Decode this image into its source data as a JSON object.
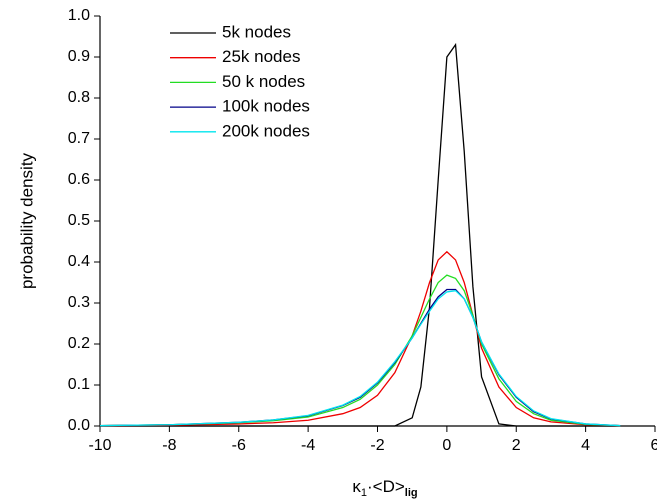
{
  "chart_data": {
    "type": "line",
    "x_label": [
      "κ",
      "1",
      "·<D>",
      "lig"
    ],
    "y_label": "probability density",
    "x": [
      -10,
      -8,
      -6,
      -5,
      -4,
      -3,
      -2.5,
      -2,
      -1.5,
      -1,
      -0.75,
      -0.5,
      -0.25,
      0,
      0.25,
      0.5,
      0.75,
      1,
      1.5,
      2,
      2.5,
      3,
      4,
      5
    ],
    "series": [
      {
        "name": "5k nodes",
        "color": "#000000",
        "values": [
          0,
          0,
          0,
          0,
          0,
          0,
          0,
          0,
          0,
          0.02,
          0.095,
          0.29,
          0.6,
          0.9,
          0.93,
          0.67,
          0.34,
          0.12,
          0.005,
          0,
          0,
          0,
          0,
          0
        ]
      },
      {
        "name": "25k nodes",
        "color": "#ee0000",
        "values": [
          0.001,
          0.002,
          0.005,
          0.008,
          0.014,
          0.03,
          0.045,
          0.075,
          0.13,
          0.22,
          0.28,
          0.35,
          0.405,
          0.425,
          0.405,
          0.35,
          0.27,
          0.19,
          0.095,
          0.045,
          0.02,
          0.01,
          0.003,
          0.001
        ]
      },
      {
        "name": "50 k nodes",
        "color": "#22dd22",
        "values": [
          0.001,
          0.003,
          0.008,
          0.013,
          0.022,
          0.045,
          0.065,
          0.1,
          0.15,
          0.22,
          0.265,
          0.31,
          0.35,
          0.368,
          0.36,
          0.33,
          0.27,
          0.2,
          0.115,
          0.06,
          0.03,
          0.014,
          0.004,
          0.001
        ]
      },
      {
        "name": "100k nodes",
        "color": "#000088",
        "values": [
          0.001,
          0.003,
          0.009,
          0.015,
          0.025,
          0.05,
          0.07,
          0.105,
          0.155,
          0.215,
          0.25,
          0.285,
          0.315,
          0.333,
          0.333,
          0.31,
          0.265,
          0.205,
          0.125,
          0.07,
          0.035,
          0.017,
          0.005,
          0.001
        ]
      },
      {
        "name": "200k nodes",
        "color": "#00e5ee",
        "values": [
          0.001,
          0.003,
          0.009,
          0.015,
          0.026,
          0.051,
          0.072,
          0.107,
          0.157,
          0.215,
          0.248,
          0.28,
          0.31,
          0.327,
          0.33,
          0.31,
          0.265,
          0.205,
          0.127,
          0.072,
          0.037,
          0.018,
          0.005,
          0.001
        ]
      }
    ],
    "xlim": [
      -10,
      6
    ],
    "xticks": [
      -10,
      -8,
      -6,
      -4,
      -2,
      0,
      2,
      4,
      6
    ],
    "ylim": [
      0,
      1
    ],
    "yticks": [
      {
        "value": 0,
        "label": "0.0"
      },
      0.1,
      0.2,
      0.3,
      0.4,
      0.5,
      0.6,
      0.7,
      0.8,
      0.9,
      {
        "value": 1,
        "label": "1.0"
      }
    ],
    "legend": "upper-left"
  }
}
